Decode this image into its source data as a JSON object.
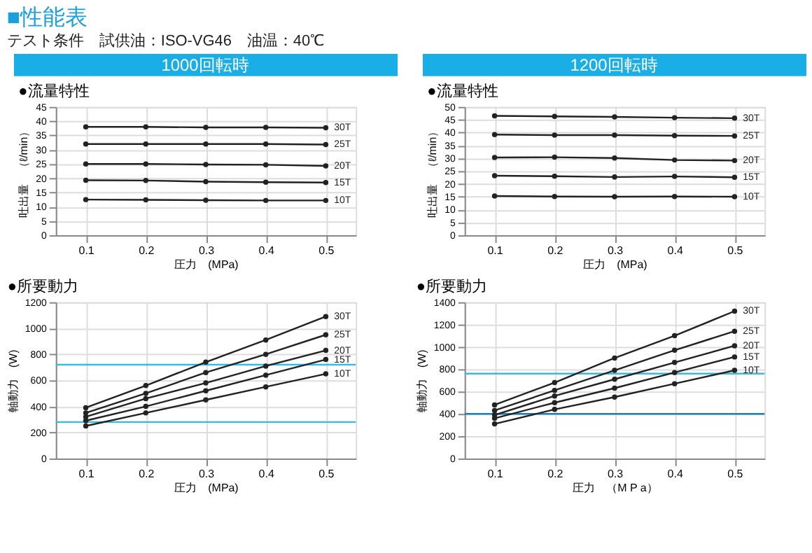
{
  "chart_data": [
    {
      "type": "line",
      "title": "●流量特性",
      "subtitle": "1000回転時",
      "annotations": [
        "■性能表",
        "テスト条件　試供油：ISO-VG46　油温：40℃"
      ],
      "xlabel": "圧力　(MPa)",
      "ylabel": "吐出量　（ℓ/min）",
      "x": [
        0.1,
        0.2,
        0.3,
        0.4,
        0.5
      ],
      "xlim": [
        0.05,
        0.55
      ],
      "xticks": [
        0.1,
        0.2,
        0.3,
        0.4,
        0.5
      ],
      "ylim": [
        0,
        45
      ],
      "yticks": [
        0,
        5,
        10,
        15,
        20,
        25,
        30,
        35,
        40,
        45
      ],
      "grid": true,
      "legend": false,
      "marker": "circle",
      "line_style": "solid",
      "series": [
        {
          "name": "30T",
          "color": "#222222",
          "values": [
            38,
            38,
            37.8,
            37.8,
            37.7
          ]
        },
        {
          "name": "25T",
          "color": "#222222",
          "values": [
            32,
            32,
            32,
            32,
            31.8
          ]
        },
        {
          "name": "20T",
          "color": "#222222",
          "values": [
            25,
            25,
            24.8,
            24.7,
            24.3
          ]
        },
        {
          "name": "15T",
          "color": "#222222",
          "values": [
            19.3,
            19.2,
            18.8,
            18.6,
            18.5
          ]
        },
        {
          "name": "10T",
          "color": "#222222",
          "values": [
            12.5,
            12.4,
            12.3,
            12.2,
            12.2
          ]
        }
      ]
    },
    {
      "type": "line",
      "title": "●流量特性",
      "subtitle": "1200回転時",
      "xlabel": "圧力　(MPa)",
      "ylabel": "吐出量　（ℓ/min）",
      "x": [
        0.1,
        0.2,
        0.3,
        0.4,
        0.5
      ],
      "xlim": [
        0.05,
        0.55
      ],
      "xticks": [
        0.1,
        0.2,
        0.3,
        0.4,
        0.5
      ],
      "ylim": [
        0,
        50
      ],
      "yticks": [
        0,
        5,
        10,
        15,
        20,
        25,
        30,
        35,
        40,
        45,
        50
      ],
      "grid": true,
      "legend": false,
      "marker": "circle",
      "line_style": "solid",
      "series": [
        {
          "name": "30T",
          "color": "#222222",
          "values": [
            46.5,
            46.3,
            46.1,
            45.8,
            45.6
          ]
        },
        {
          "name": "25T",
          "color": "#222222",
          "values": [
            39.2,
            39.0,
            39.0,
            38.8,
            38.7
          ]
        },
        {
          "name": "20T",
          "color": "#222222",
          "values": [
            30.3,
            30.4,
            30.1,
            29.3,
            29.1
          ]
        },
        {
          "name": "15T",
          "color": "#222222",
          "values": [
            23.2,
            23.0,
            22.7,
            22.9,
            22.6
          ]
        },
        {
          "name": "10T",
          "color": "#222222",
          "values": [
            15.3,
            15.1,
            15.0,
            15.1,
            15.0
          ]
        }
      ]
    },
    {
      "type": "line",
      "title": "●所要動力",
      "xlabel": "圧力　(MPa)",
      "ylabel": "軸動力　(W)",
      "x": [
        0.1,
        0.2,
        0.3,
        0.4,
        0.5
      ],
      "xlim": [
        0.05,
        0.55
      ],
      "xticks": [
        0.1,
        0.2,
        0.3,
        0.4,
        0.5
      ],
      "ylim": [
        0,
        1200
      ],
      "yticks": [
        0,
        200,
        400,
        600,
        800,
        1000,
        1200
      ],
      "grid": true,
      "legend": false,
      "marker": "circle",
      "line_style": "solid",
      "ref_lines": [
        {
          "axis": "y",
          "value": 720,
          "color": "#3fb8e0"
        },
        {
          "axis": "y",
          "value": 280,
          "color": "#3fb8e0"
        }
      ],
      "series": [
        {
          "name": "30T",
          "color": "#222222",
          "values": [
            390,
            560,
            740,
            910,
            1090
          ]
        },
        {
          "name": "25T",
          "color": "#222222",
          "values": [
            350,
            500,
            660,
            800,
            950
          ]
        },
        {
          "name": "20T",
          "color": "#222222",
          "values": [
            320,
            460,
            580,
            710,
            830
          ]
        },
        {
          "name": "15T",
          "color": "#222222",
          "values": [
            290,
            400,
            520,
            640,
            760
          ]
        },
        {
          "name": "10T",
          "color": "#222222",
          "values": [
            250,
            350,
            450,
            550,
            650
          ]
        }
      ]
    },
    {
      "type": "line",
      "title": "●所要動力",
      "xlabel": "圧力　（M P a）",
      "ylabel": "軸動力　(W)",
      "x": [
        0.1,
        0.2,
        0.3,
        0.4,
        0.5
      ],
      "xlim": [
        0.05,
        0.55
      ],
      "xticks": [
        0.1,
        0.2,
        0.3,
        0.4,
        0.5
      ],
      "ylim": [
        0,
        1400
      ],
      "yticks": [
        0,
        200,
        400,
        600,
        800,
        1000,
        1200,
        1400
      ],
      "grid": true,
      "legend": false,
      "marker": "circle",
      "line_style": "solid",
      "ref_lines": [
        {
          "axis": "y",
          "value": 760,
          "color": "#3fb8e0"
        },
        {
          "axis": "y",
          "value": 400,
          "color": "#1f7fb8"
        }
      ],
      "series": [
        {
          "name": "30T",
          "color": "#222222",
          "values": [
            480,
            680,
            900,
            1100,
            1320
          ]
        },
        {
          "name": "25T",
          "color": "#222222",
          "values": [
            430,
            610,
            790,
            970,
            1140
          ]
        },
        {
          "name": "20T",
          "color": "#222222",
          "values": [
            390,
            560,
            710,
            860,
            1010
          ]
        },
        {
          "name": "15T",
          "color": "#222222",
          "values": [
            360,
            500,
            630,
            770,
            910
          ]
        },
        {
          "name": "10T",
          "color": "#222222",
          "values": [
            310,
            440,
            550,
            670,
            790
          ]
        }
      ]
    }
  ]
}
